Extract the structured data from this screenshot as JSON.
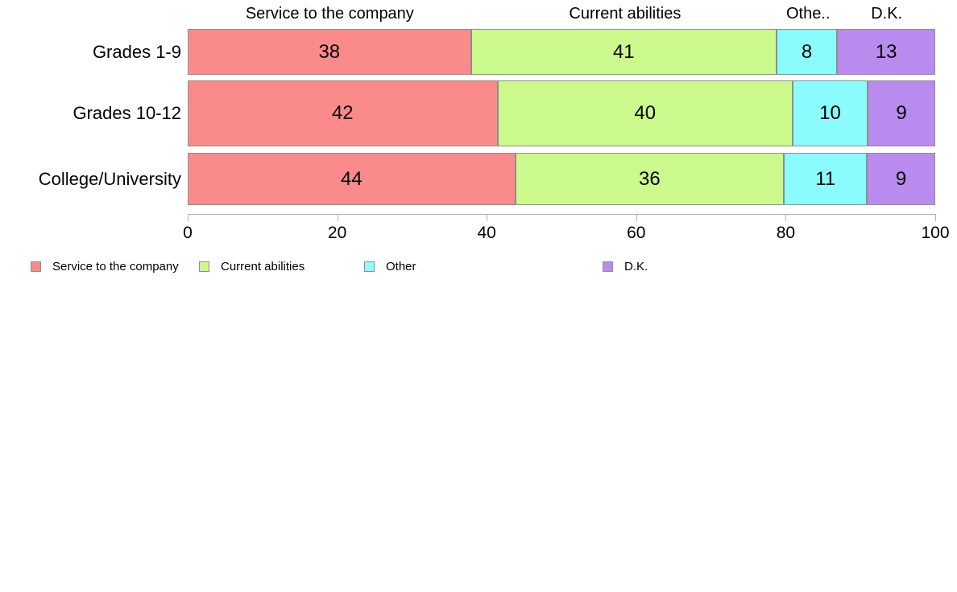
{
  "chart_data": {
    "type": "bar",
    "orientation": "horizontal",
    "stacked": true,
    "categories": [
      "Grades 1-9",
      "Grades 10-12",
      "College/University"
    ],
    "series": [
      {
        "name": "Service to the company",
        "color": "#fb8a8a",
        "values": [
          38,
          42,
          44
        ]
      },
      {
        "name": "Current abilities",
        "color": "#ccf98c",
        "values": [
          41,
          40,
          36
        ]
      },
      {
        "name": "Other",
        "color": "#8bfcfd",
        "values": [
          8,
          10,
          11
        ]
      },
      {
        "name": "D.K.",
        "color": "#ba8bee",
        "values": [
          13,
          9,
          9
        ]
      }
    ],
    "column_headers": [
      "Service to the company",
      "Current abilities",
      "Othe..",
      "D.K."
    ],
    "x_axis": {
      "min": 0,
      "max": 100,
      "ticks": [
        0,
        20,
        40,
        60,
        80,
        100
      ]
    },
    "legend": {
      "position": "bottom",
      "entries": [
        "Service to the company",
        "Current abilities",
        "Other",
        "D.K."
      ]
    },
    "grid": "off",
    "value_labels": "inside-center",
    "text_color": "#000000",
    "axis_color": "#b3b3b3"
  }
}
